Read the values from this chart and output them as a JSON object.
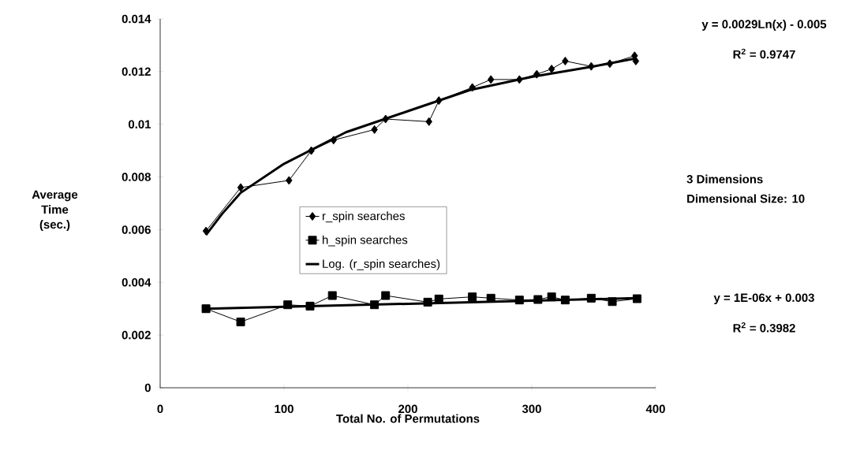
{
  "chart_data": {
    "type": "line",
    "xlabel": "Total No. of Permutations",
    "ylabel": "Average Time (sec.)",
    "xlim": [
      0,
      400
    ],
    "xticks": [
      0,
      100,
      200,
      300,
      400
    ],
    "ylim": [
      0,
      0.014
    ],
    "yticks": [
      0,
      0.002,
      0.004,
      0.006,
      0.008,
      0.01,
      0.012,
      0.014
    ],
    "legend": "center",
    "line_style": "solid",
    "annotations": [
      "y = 0.0029Ln(x) - 0.005",
      "R$^{2}$ = 0.9747",
      "3 Dimensions",
      "Dimensional Size: 10",
      "y = 1E-06x + 0.003",
      "R$^{2}$ = 0.3982"
    ],
    "series": [
      {
        "name": "r_spin searches",
        "color": "#000000",
        "marker": "diamond",
        "x": [
          37,
          65,
          104,
          122,
          140,
          173,
          182,
          217,
          225,
          252,
          267,
          290,
          304,
          316,
          327,
          348,
          363,
          383,
          384
        ],
        "values": [
          0.00595,
          0.0076,
          0.00787,
          0.009,
          0.0094,
          0.0098,
          0.0102,
          0.0101,
          0.0109,
          0.0114,
          0.0117,
          0.0117,
          0.0119,
          0.0121,
          0.0124,
          0.0122,
          0.0123,
          0.0126,
          0.0124
        ]
      },
      {
        "name": "h_spin searches",
        "color": "#000000",
        "marker": "square",
        "x": [
          37,
          65,
          103,
          121,
          139,
          173,
          182,
          216,
          225,
          252,
          267,
          290,
          305,
          316,
          327,
          348,
          365,
          385
        ],
        "values": [
          0.003,
          0.0025,
          0.00315,
          0.0031,
          0.0035,
          0.00315,
          0.0035,
          0.00325,
          0.00337,
          0.00345,
          0.0034,
          0.00333,
          0.00335,
          0.00345,
          0.00333,
          0.0034,
          0.00327,
          0.00338
        ]
      },
      {
        "name": "Log. (r_spin searches)",
        "type": "line",
        "color": "#000000",
        "marker": "none",
        "x": [
          37,
          50,
          65,
          100,
          150,
          200,
          250,
          300,
          350,
          384
        ],
        "values": [
          0.0058,
          0.0066,
          0.0074,
          0.0085,
          0.0097,
          0.0105,
          0.0113,
          0.0118,
          0.0122,
          0.0125
        ]
      },
      {
        "type": "line",
        "color": "#000000",
        "marker": "none",
        "x": [
          37,
          384
        ],
        "values": [
          0.003,
          0.0034
        ]
      }
    ]
  }
}
